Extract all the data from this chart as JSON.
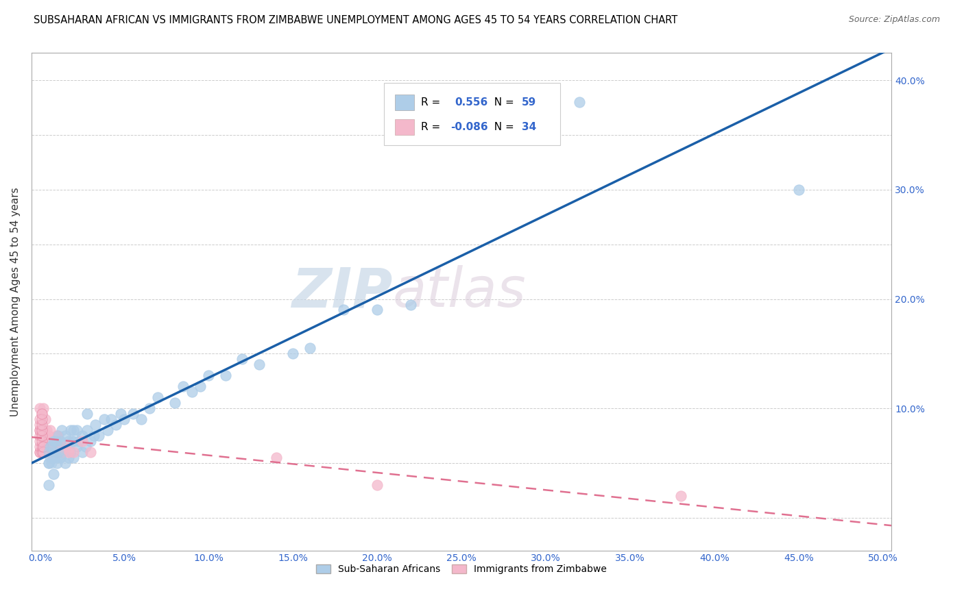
{
  "title": "SUBSAHARAN AFRICAN VS IMMIGRANTS FROM ZIMBABWE UNEMPLOYMENT AMONG AGES 45 TO 54 YEARS CORRELATION CHART",
  "source": "Source: ZipAtlas.com",
  "ylabel": "Unemployment Among Ages 45 to 54 years",
  "xlim": [
    -0.005,
    0.505
  ],
  "ylim": [
    -0.03,
    0.425
  ],
  "xticks": [
    0.0,
    0.05,
    0.1,
    0.15,
    0.2,
    0.25,
    0.3,
    0.35,
    0.4,
    0.45,
    0.5
  ],
  "yticks_right": [
    0.1,
    0.2,
    0.3,
    0.4
  ],
  "yticks_grid": [
    0.0,
    0.05,
    0.1,
    0.15,
    0.2,
    0.25,
    0.3,
    0.35,
    0.4
  ],
  "blue_R": 0.556,
  "blue_N": 59,
  "pink_R": -0.086,
  "pink_N": 34,
  "blue_color": "#aecde8",
  "pink_color": "#f4b8cb",
  "blue_line_color": "#1a5fa8",
  "pink_line_color": "#e07090",
  "watermark_zip": "ZIP",
  "watermark_atlas": "atlas",
  "legend_label_blue": "Sub-Saharan Africans",
  "legend_label_pink": "Immigrants from Zimbabwe",
  "blue_scatter_x": [
    0.005,
    0.005,
    0.008,
    0.01,
    0.01,
    0.01,
    0.012,
    0.012,
    0.013,
    0.013,
    0.015,
    0.015,
    0.015,
    0.017,
    0.017,
    0.018,
    0.018,
    0.019,
    0.02,
    0.02,
    0.02,
    0.022,
    0.022,
    0.023,
    0.025,
    0.025,
    0.027,
    0.028,
    0.028,
    0.03,
    0.032,
    0.033,
    0.035,
    0.038,
    0.04,
    0.042,
    0.045,
    0.048,
    0.05,
    0.055,
    0.06,
    0.065,
    0.07,
    0.08,
    0.085,
    0.09,
    0.095,
    0.1,
    0.11,
    0.12,
    0.13,
    0.15,
    0.16,
    0.18,
    0.2,
    0.22,
    0.27,
    0.32,
    0.45
  ],
  "blue_scatter_y": [
    0.03,
    0.05,
    0.04,
    0.05,
    0.06,
    0.075,
    0.055,
    0.07,
    0.06,
    0.08,
    0.05,
    0.065,
    0.075,
    0.055,
    0.07,
    0.06,
    0.08,
    0.07,
    0.055,
    0.07,
    0.08,
    0.065,
    0.08,
    0.07,
    0.06,
    0.075,
    0.065,
    0.08,
    0.095,
    0.07,
    0.075,
    0.085,
    0.075,
    0.09,
    0.08,
    0.09,
    0.085,
    0.095,
    0.09,
    0.095,
    0.09,
    0.1,
    0.11,
    0.105,
    0.12,
    0.115,
    0.12,
    0.13,
    0.13,
    0.145,
    0.14,
    0.15,
    0.155,
    0.19,
    0.19,
    0.195,
    0.35,
    0.38,
    0.3
  ],
  "pink_scatter_x": [
    0.0,
    0.0,
    0.0,
    0.001,
    0.001,
    0.001,
    0.002,
    0.002,
    0.002,
    0.003,
    0.003,
    0.003,
    0.004,
    0.004,
    0.005,
    0.005,
    0.006,
    0.006,
    0.007,
    0.007,
    0.008,
    0.009,
    0.01,
    0.01,
    0.012,
    0.013,
    0.015,
    0.017,
    0.02,
    0.025,
    0.03,
    0.14,
    0.2,
    0.38
  ],
  "pink_scatter_y": [
    0.06,
    0.08,
    0.1,
    0.06,
    0.075,
    0.095,
    0.06,
    0.08,
    0.1,
    0.06,
    0.075,
    0.09,
    0.065,
    0.08,
    0.06,
    0.075,
    0.065,
    0.08,
    0.06,
    0.07,
    0.065,
    0.06,
    0.06,
    0.075,
    0.065,
    0.06,
    0.065,
    0.06,
    0.06,
    0.07,
    0.06,
    0.055,
    0.03,
    0.02
  ],
  "pink_cluster_x": [
    0.0,
    0.0,
    0.0,
    0.0,
    0.0,
    0.0,
    0.0,
    0.001,
    0.001,
    0.001,
    0.001,
    0.001,
    0.001,
    0.001,
    0.001,
    0.002,
    0.002
  ],
  "pink_cluster_y": [
    0.06,
    0.065,
    0.07,
    0.075,
    0.08,
    0.085,
    0.09,
    0.06,
    0.065,
    0.07,
    0.075,
    0.08,
    0.085,
    0.09,
    0.095,
    0.06,
    0.065
  ],
  "blue_cluster_x": [
    0.005,
    0.005,
    0.006,
    0.006,
    0.007,
    0.007,
    0.008,
    0.008,
    0.009,
    0.009,
    0.01,
    0.01,
    0.011,
    0.011,
    0.012,
    0.012
  ],
  "blue_cluster_y": [
    0.05,
    0.06,
    0.055,
    0.065,
    0.05,
    0.065,
    0.055,
    0.07,
    0.06,
    0.07,
    0.055,
    0.07,
    0.06,
    0.075,
    0.055,
    0.07
  ]
}
